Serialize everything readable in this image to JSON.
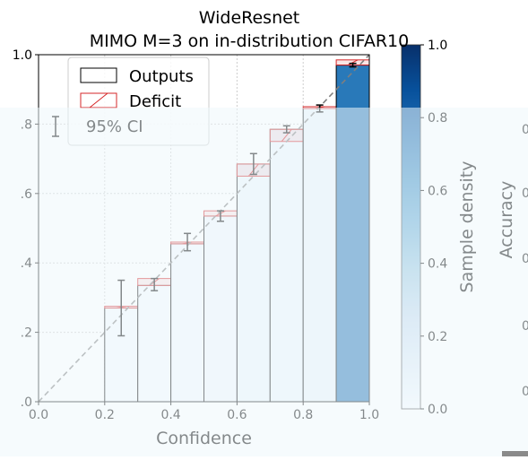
{
  "chart_data": {
    "type": "bar",
    "title_line1": "WideResnet",
    "title_line2": "MIMO M=3 on in-distribution CIFAR10",
    "xlabel": "Confidence",
    "ylabel": "Accuracy",
    "xlim": [
      0.0,
      1.0
    ],
    "ylim": [
      0.0,
      1.0
    ],
    "x_ticks": [
      "0.0",
      "0.2",
      "0.4",
      "0.6",
      "0.8",
      "1.0"
    ],
    "y_ticks": [
      "0.0",
      "0.2",
      "0.4",
      "0.6",
      "0.8",
      "1.0"
    ],
    "y_tick_labels_clipped": [
      ".0",
      ".2",
      ".4",
      ".6",
      ".8",
      "1.0"
    ],
    "grid": true,
    "legend_position": "top-left",
    "legend": [
      {
        "label": "Outputs",
        "kind": "outputs"
      },
      {
        "label": "Deficit",
        "kind": "deficit"
      },
      {
        "label": "95% CI",
        "kind": "ci"
      }
    ],
    "bins": [
      {
        "left": 0.2,
        "right": 0.3,
        "accuracy": 0.27,
        "avg_confidence": 0.275,
        "ci": [
          0.19,
          0.35
        ],
        "density": 0.01
      },
      {
        "left": 0.3,
        "right": 0.4,
        "accuracy": 0.335,
        "avg_confidence": 0.355,
        "ci": [
          0.32,
          0.355
        ],
        "density": 0.01
      },
      {
        "left": 0.4,
        "right": 0.5,
        "accuracy": 0.455,
        "avg_confidence": 0.46,
        "ci": [
          0.435,
          0.485
        ],
        "density": 0.02
      },
      {
        "left": 0.5,
        "right": 0.6,
        "accuracy": 0.535,
        "avg_confidence": 0.55,
        "ci": [
          0.52,
          0.55
        ],
        "density": 0.03
      },
      {
        "left": 0.6,
        "right": 0.7,
        "accuracy": 0.685,
        "avg_confidence": 0.65,
        "ci": [
          0.655,
          0.715
        ],
        "density": 0.05
      },
      {
        "left": 0.7,
        "right": 0.8,
        "accuracy": 0.785,
        "avg_confidence": 0.75,
        "ci": [
          0.775,
          0.795
        ],
        "density": 0.05
      },
      {
        "left": 0.8,
        "right": 0.9,
        "accuracy": 0.845,
        "avg_confidence": 0.85,
        "ci": [
          0.835,
          0.855
        ],
        "density": 0.06
      },
      {
        "left": 0.9,
        "right": 1.0,
        "accuracy": 0.97,
        "avg_confidence": 0.985,
        "ci": [
          0.965,
          0.975
        ],
        "density": 0.72
      }
    ],
    "colorbar": {
      "label": "Sample density",
      "range": [
        0.0,
        1.0
      ],
      "ticks": [
        "0.0",
        "0.2",
        "0.4",
        "0.6",
        "0.8",
        "1.0"
      ],
      "cmap": [
        "#f7fbff",
        "#deebf7",
        "#c6dbef",
        "#9ecae1",
        "#6baed6",
        "#4292c6",
        "#2171b5",
        "#08519c",
        "#08306b"
      ]
    },
    "partial_right_ticks": [
      "0",
      "0",
      "0",
      "0",
      "0"
    ],
    "colors": {
      "deficit": "#d62728",
      "diagonal": "#7f7f7f",
      "edge": "#000000",
      "grid": "#cccccc",
      "overlay": "#eef7fc"
    }
  }
}
